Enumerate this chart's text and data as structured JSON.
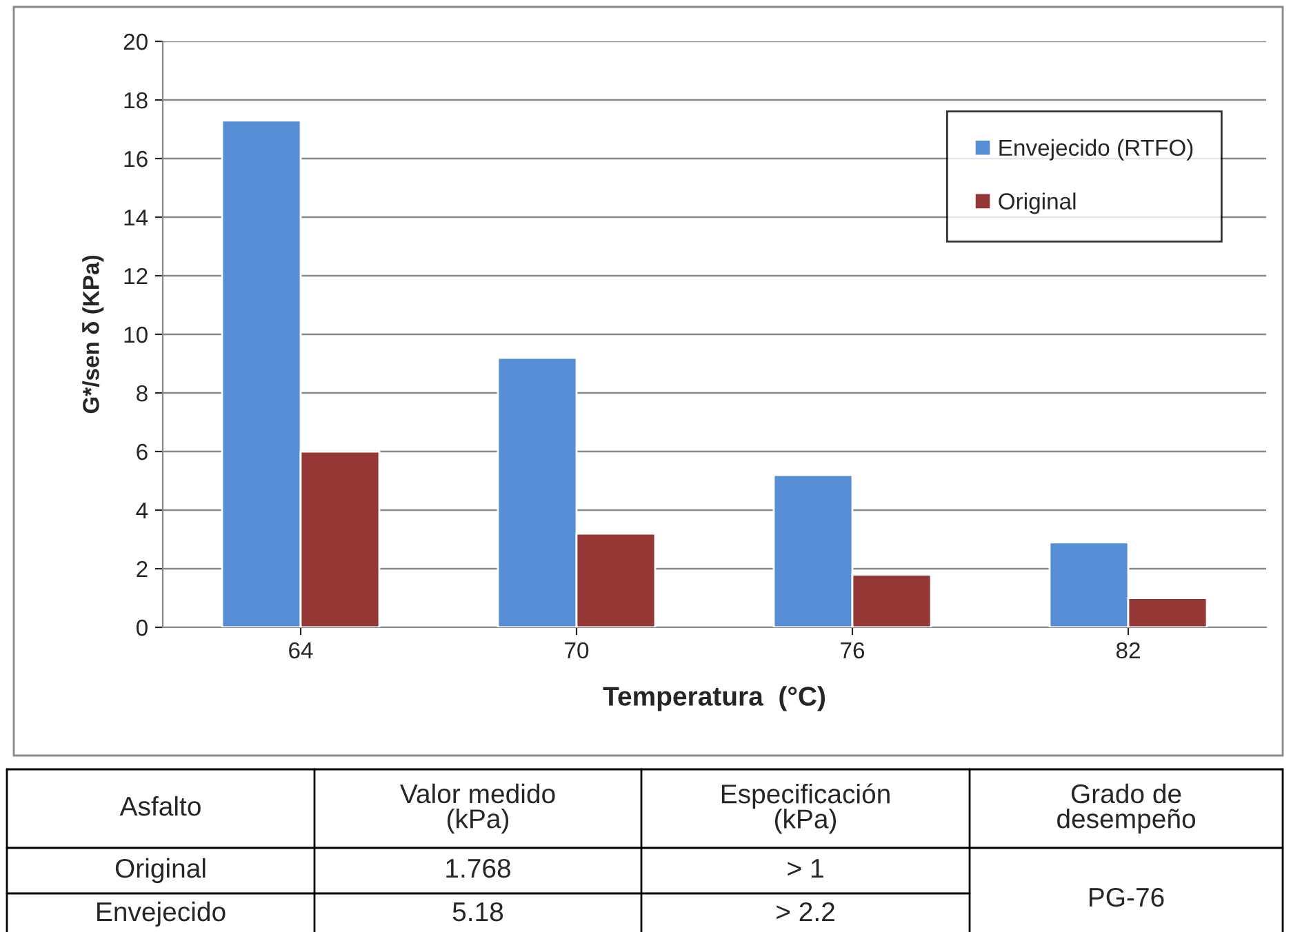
{
  "chart_data": {
    "type": "bar",
    "xlabel": "Temperatura  (°C)",
    "ylabel": "G*/sen δ (KPa)",
    "categories": [
      "64",
      "70",
      "76",
      "82"
    ],
    "series": [
      {
        "name": "Envejecido (RTFO)",
        "color": "#558ed5",
        "values": [
          17.3,
          9.2,
          5.2,
          2.9
        ]
      },
      {
        "name": "Original",
        "color": "#953735",
        "values": [
          6.0,
          3.2,
          1.8,
          1.0
        ]
      }
    ],
    "ylim": [
      0,
      20
    ],
    "yticks": [
      0,
      2,
      4,
      6,
      8,
      10,
      12,
      14,
      16,
      18,
      20
    ],
    "grid": "y",
    "legend": "top right",
    "annotations": [
      "Asfalto",
      "Valor medido\n(kPa)",
      "Especificación\n(kPa)",
      "Grado de\ndesempeño",
      "Original",
      "1.768",
      "> 1",
      "PG-76",
      "Envejecido",
      "5.18",
      "> 2.2"
    ]
  }
}
